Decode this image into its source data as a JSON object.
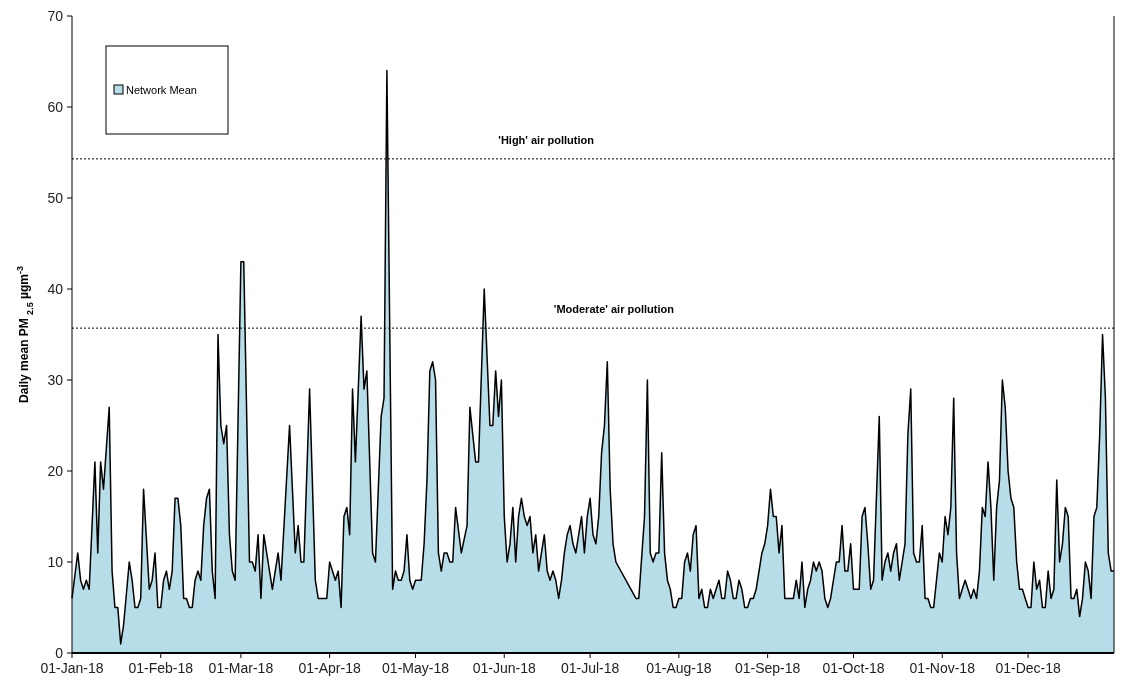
{
  "chart_data": {
    "type": "area",
    "ylabel": "Daily mean PM $_{2.5}$ µgm$^{-3}$",
    "legend": "top left",
    "xlim": [
      "2018-01-01",
      "2018-12-31"
    ],
    "ylim": [
      0,
      70
    ],
    "yticks": [
      0,
      10,
      20,
      30,
      40,
      50,
      60,
      70
    ],
    "xticks": [
      {
        "value": "2018-01-01",
        "label": "01-Jan-18"
      },
      {
        "value": "2018-02-01",
        "label": "01-Feb-18"
      },
      {
        "value": "2018-03-01",
        "label": "01-Mar-18"
      },
      {
        "value": "2018-04-01",
        "label": "01-Apr-18"
      },
      {
        "value": "2018-05-01",
        "label": "01-May-18"
      },
      {
        "value": "2018-06-01",
        "label": "01-Jun-18"
      },
      {
        "value": "2018-07-01",
        "label": "01-Jul-18"
      },
      {
        "value": "2018-08-01",
        "label": "01-Aug-18"
      },
      {
        "value": "2018-09-01",
        "label": "01-Sep-18"
      },
      {
        "value": "2018-10-01",
        "label": "01-Oct-18"
      },
      {
        "value": "2018-11-01",
        "label": "01-Nov-18"
      },
      {
        "value": "2018-12-01",
        "label": "01-Dec-18"
      }
    ],
    "ref_lines": [
      {
        "axis": "y",
        "value": 54.3,
        "label": "'High' air pollution",
        "line_style": "dotted",
        "color": "#000000"
      },
      {
        "axis": "y",
        "value": 35.7,
        "label": "'Moderate' air pollution",
        "line_style": "dotted",
        "color": "#000000"
      }
    ],
    "series": [
      {
        "name": "Network Mean",
        "color": "#b7dde8",
        "x": [
          "2018-01-01",
          "2018-01-03",
          "2018-01-04",
          "2018-01-05",
          "2018-01-06",
          "2018-01-07",
          "2018-01-09",
          "2018-01-10",
          "2018-01-11",
          "2018-01-12",
          "2018-01-14",
          "2018-01-15",
          "2018-01-16",
          "2018-01-17",
          "2018-01-18",
          "2018-01-19",
          "2018-01-21",
          "2018-01-22",
          "2018-01-23",
          "2018-01-24",
          "2018-01-25",
          "2018-01-26",
          "2018-01-28",
          "2018-01-29",
          "2018-01-30",
          "2018-01-31",
          "2018-02-01",
          "2018-02-02",
          "2018-02-03",
          "2018-02-04",
          "2018-02-05",
          "2018-02-06",
          "2018-02-07",
          "2018-02-08",
          "2018-02-09",
          "2018-02-10",
          "2018-02-11",
          "2018-02-12",
          "2018-02-13",
          "2018-02-14",
          "2018-02-15",
          "2018-02-16",
          "2018-02-17",
          "2018-02-18",
          "2018-02-19",
          "2018-02-20",
          "2018-02-21",
          "2018-02-22",
          "2018-02-23",
          "2018-02-24",
          "2018-02-25",
          "2018-02-26",
          "2018-02-27",
          "2018-03-01",
          "2018-03-02",
          "2018-03-04",
          "2018-03-05",
          "2018-03-06",
          "2018-03-07",
          "2018-03-08",
          "2018-03-09",
          "2018-03-12",
          "2018-03-14",
          "2018-03-15",
          "2018-03-18",
          "2018-03-20",
          "2018-03-21",
          "2018-03-22",
          "2018-03-23",
          "2018-03-25",
          "2018-03-27",
          "2018-03-28",
          "2018-03-31",
          "2018-04-01",
          "2018-04-03",
          "2018-04-04",
          "2018-04-05",
          "2018-04-06",
          "2018-04-07",
          "2018-04-08",
          "2018-04-09",
          "2018-04-10",
          "2018-04-12",
          "2018-04-13",
          "2018-04-14",
          "2018-04-16",
          "2018-04-17",
          "2018-04-19",
          "2018-04-20",
          "2018-04-21",
          "2018-04-23",
          "2018-04-24",
          "2018-04-25",
          "2018-04-26",
          "2018-04-27",
          "2018-04-28",
          "2018-04-29",
          "2018-04-30",
          "2018-05-01",
          "2018-05-03",
          "2018-05-04",
          "2018-05-05",
          "2018-05-06",
          "2018-05-07",
          "2018-05-08",
          "2018-05-09",
          "2018-05-10",
          "2018-05-11",
          "2018-05-12",
          "2018-05-13",
          "2018-05-14",
          "2018-05-15",
          "2018-05-17",
          "2018-05-19",
          "2018-05-20",
          "2018-05-22",
          "2018-05-23",
          "2018-05-25",
          "2018-05-27",
          "2018-05-28",
          "2018-05-29",
          "2018-05-30",
          "2018-05-31",
          "2018-06-01",
          "2018-06-02",
          "2018-06-03",
          "2018-06-04",
          "2018-06-05",
          "2018-06-06",
          "2018-06-07",
          "2018-06-08",
          "2018-06-09",
          "2018-06-10",
          "2018-06-11",
          "2018-06-12",
          "2018-06-13",
          "2018-06-14",
          "2018-06-15",
          "2018-06-16",
          "2018-06-17",
          "2018-06-18",
          "2018-06-19",
          "2018-06-20",
          "2018-06-21",
          "2018-06-22",
          "2018-06-23",
          "2018-06-24",
          "2018-06-25",
          "2018-06-26",
          "2018-06-28",
          "2018-06-29",
          "2018-06-30",
          "2018-07-01",
          "2018-07-02",
          "2018-07-03",
          "2018-07-04",
          "2018-07-05",
          "2018-07-06",
          "2018-07-07",
          "2018-07-08",
          "2018-07-09",
          "2018-07-10",
          "2018-07-17",
          "2018-07-18",
          "2018-07-20",
          "2018-07-21",
          "2018-07-22",
          "2018-07-23",
          "2018-07-24",
          "2018-07-25",
          "2018-07-26",
          "2018-07-27",
          "2018-07-28",
          "2018-07-29",
          "2018-07-30",
          "2018-07-31",
          "2018-08-01",
          "2018-08-02",
          "2018-08-03",
          "2018-08-04",
          "2018-08-05",
          "2018-08-06",
          "2018-08-07",
          "2018-08-08",
          "2018-08-09",
          "2018-08-10",
          "2018-08-11",
          "2018-08-12",
          "2018-08-13",
          "2018-08-15",
          "2018-08-16",
          "2018-08-17",
          "2018-08-18",
          "2018-08-19",
          "2018-08-20",
          "2018-08-21",
          "2018-08-22",
          "2018-08-23",
          "2018-08-24",
          "2018-08-25",
          "2018-08-26",
          "2018-08-27",
          "2018-08-28",
          "2018-08-30",
          "2018-08-31",
          "2018-09-01",
          "2018-09-02",
          "2018-09-03",
          "2018-09-04",
          "2018-09-05",
          "2018-09-06",
          "2018-09-07",
          "2018-09-10",
          "2018-09-11",
          "2018-09-12",
          "2018-09-13",
          "2018-09-14",
          "2018-09-15",
          "2018-09-16",
          "2018-09-17",
          "2018-09-18",
          "2018-09-19",
          "2018-09-20",
          "2018-09-21",
          "2018-09-22",
          "2018-09-23",
          "2018-09-24",
          "2018-09-25",
          "2018-09-26",
          "2018-09-27",
          "2018-09-28",
          "2018-09-29",
          "2018-09-30",
          "2018-10-01",
          "2018-10-03",
          "2018-10-04",
          "2018-10-05",
          "2018-10-06",
          "2018-10-07",
          "2018-10-08",
          "2018-10-10",
          "2018-10-11",
          "2018-10-12",
          "2018-10-13",
          "2018-10-14",
          "2018-10-15",
          "2018-10-16",
          "2018-10-17",
          "2018-10-18",
          "2018-10-19",
          "2018-10-20",
          "2018-10-21",
          "2018-10-22",
          "2018-10-23",
          "2018-10-24",
          "2018-10-25",
          "2018-10-26",
          "2018-10-27",
          "2018-10-28",
          "2018-10-29",
          "2018-10-30",
          "2018-10-31",
          "2018-11-01",
          "2018-11-02",
          "2018-11-03",
          "2018-11-04",
          "2018-11-05",
          "2018-11-06",
          "2018-11-07",
          "2018-11-08",
          "2018-11-09",
          "2018-11-10",
          "2018-11-11",
          "2018-11-12",
          "2018-11-13",
          "2018-11-14",
          "2018-11-15",
          "2018-11-16",
          "2018-11-17",
          "2018-11-18",
          "2018-11-19",
          "2018-11-20",
          "2018-11-21",
          "2018-11-22",
          "2018-11-23",
          "2018-11-24",
          "2018-11-25",
          "2018-11-26",
          "2018-11-27",
          "2018-11-28",
          "2018-11-29",
          "2018-11-30",
          "2018-12-01",
          "2018-12-02",
          "2018-12-03",
          "2018-12-04",
          "2018-12-05",
          "2018-12-06",
          "2018-12-07",
          "2018-12-08",
          "2018-12-09",
          "2018-12-10",
          "2018-12-11",
          "2018-12-12",
          "2018-12-13",
          "2018-12-14",
          "2018-12-15",
          "2018-12-16",
          "2018-12-17",
          "2018-12-18",
          "2018-12-19",
          "2018-12-20",
          "2018-12-21",
          "2018-12-22",
          "2018-12-23",
          "2018-12-24",
          "2018-12-25",
          "2018-12-26",
          "2018-12-27",
          "2018-12-28",
          "2018-12-29",
          "2018-12-30",
          "2018-12-31"
        ],
        "values": [
          6,
          11,
          8,
          7,
          8,
          7,
          21,
          11,
          21,
          18,
          27,
          9,
          5,
          5,
          1,
          3,
          10,
          8,
          5,
          5,
          6,
          18,
          7,
          8,
          11,
          5,
          5,
          8,
          9,
          7,
          9,
          17,
          17,
          14,
          6,
          6,
          5,
          5,
          8,
          9,
          8,
          14,
          17,
          18,
          9,
          6,
          35,
          25,
          23,
          25,
          13,
          9,
          8,
          43,
          43,
          10,
          10,
          9,
          13,
          6,
          13,
          7,
          11,
          8,
          25,
          11,
          14,
          10,
          10,
          29,
          8,
          6,
          6,
          10,
          8,
          9,
          5,
          15,
          16,
          13,
          29,
          21,
          37,
          29,
          31,
          11,
          10,
          26,
          28,
          64,
          7,
          9,
          8,
          8,
          9,
          13,
          8,
          7,
          8,
          8,
          12,
          19,
          31,
          32,
          30,
          11,
          9,
          11,
          11,
          10,
          10,
          16,
          11,
          14,
          27,
          21,
          21,
          40,
          25,
          25,
          31,
          26,
          30,
          15,
          10,
          12,
          16,
          10,
          15,
          17,
          15,
          14,
          15,
          11,
          13,
          9,
          11,
          13,
          9,
          8,
          9,
          8,
          6,
          8,
          11,
          13,
          14,
          12,
          11,
          15,
          11,
          15,
          17,
          13,
          12,
          15,
          22,
          25,
          32,
          18,
          12,
          10,
          6,
          6,
          15,
          30,
          11,
          10,
          11,
          11,
          22,
          11,
          8,
          7,
          5,
          5,
          6,
          6,
          10,
          11,
          9,
          13,
          14,
          6,
          7,
          5,
          5,
          7,
          6,
          8,
          6,
          6,
          9,
          8,
          6,
          6,
          8,
          7,
          5,
          5,
          6,
          6,
          7,
          11,
          12,
          14,
          18,
          15,
          15,
          11,
          14,
          6,
          6,
          8,
          6,
          10,
          5,
          7,
          8,
          10,
          9,
          10,
          9,
          6,
          5,
          6,
          8,
          10,
          10,
          14,
          9,
          9,
          12,
          7,
          7,
          15,
          16,
          12,
          7,
          8,
          26,
          8,
          10,
          11,
          9,
          11,
          12,
          8,
          10,
          12,
          24,
          29,
          11,
          10,
          10,
          14,
          6,
          6,
          5,
          5,
          8,
          11,
          10,
          15,
          13,
          16,
          28,
          11,
          6,
          7,
          8,
          7,
          6,
          7,
          6,
          9,
          16,
          15,
          21,
          16,
          8,
          16,
          19,
          30,
          27,
          20,
          17,
          16,
          10,
          7,
          7,
          6,
          5,
          5,
          10,
          7,
          8,
          5,
          5,
          9,
          6,
          7,
          19,
          10,
          12,
          16,
          15,
          6,
          6,
          7,
          4,
          6,
          10,
          9,
          6,
          15,
          16,
          24,
          35,
          28,
          11,
          9,
          9
        ]
      }
    ]
  }
}
